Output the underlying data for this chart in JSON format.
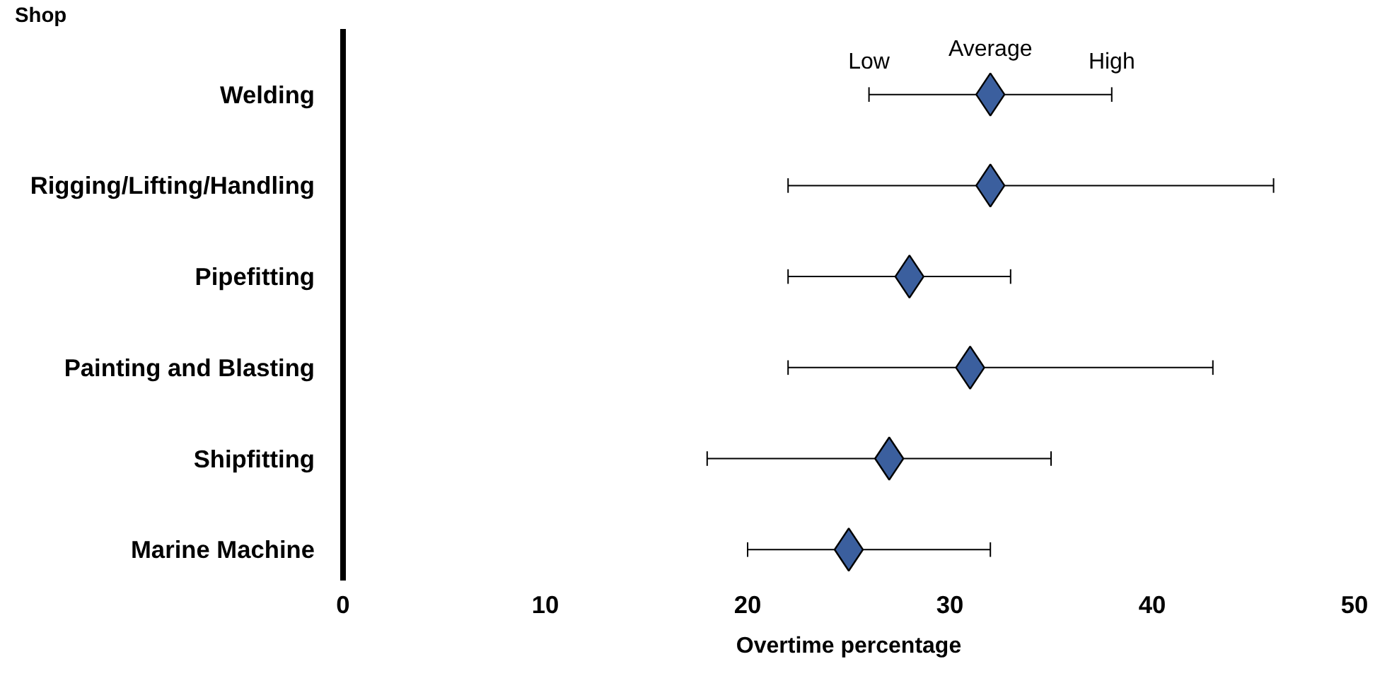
{
  "chart_data": {
    "type": "scatter",
    "orientation": "horizontal",
    "ylabel": "Shop",
    "xlabel": "Overtime percentage",
    "categories": [
      "Welding",
      "Rigging/Lifting/Handling",
      "Pipefitting",
      "Painting and Blasting",
      "Shipfitting",
      "Marine Machine"
    ],
    "values": [
      32,
      32,
      28,
      31,
      27,
      25
    ],
    "errors": [
      [
        26,
        38
      ],
      [
        22,
        46
      ],
      [
        22,
        33
      ],
      [
        22,
        43
      ],
      [
        18,
        35
      ],
      [
        20,
        32
      ]
    ],
    "color": "#3b5f9e",
    "marker": "diamond",
    "xlim": [
      0,
      50
    ],
    "xticks": [
      0,
      10,
      20,
      30,
      40,
      50
    ],
    "grid": false,
    "annotations": [
      "Low",
      "Average",
      "High"
    ]
  }
}
